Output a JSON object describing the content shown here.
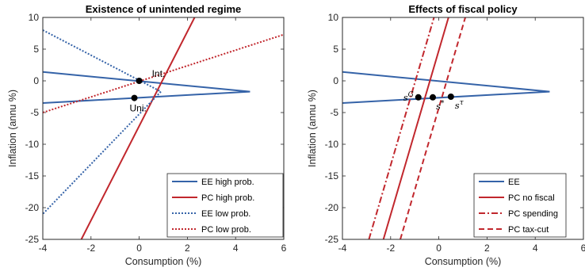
{
  "chart_data": [
    {
      "type": "line",
      "title": "Existence of unintended regime",
      "xlabel": "Consumption (%)",
      "ylabel": "Inflation (annu %)",
      "xlim": [
        -4,
        6
      ],
      "ylim": [
        -25,
        10
      ],
      "xticks": [
        "-4",
        "-2",
        "0",
        "2",
        "4",
        "6"
      ],
      "yticks": [
        "-25",
        "-20",
        "-15",
        "-10",
        "-5",
        "0",
        "5",
        "10"
      ],
      "legend_position": "bottom-right",
      "series": [
        {
          "name": "EE high prob.",
          "color": "#3563A8",
          "style": "solid",
          "points": [
            [
              -4,
              1.4
            ],
            [
              4.6,
              -1.7
            ],
            [
              -4,
              -3.5
            ]
          ]
        },
        {
          "name": "PC high prob.",
          "color": "#C1272D",
          "style": "solid",
          "points": [
            [
              -2.4,
              -25
            ],
            [
              2.3,
              10
            ]
          ]
        },
        {
          "name": "EE low prob.",
          "color": "#3563A8",
          "style": "dotted",
          "points": [
            [
              -4,
              8
            ],
            [
              0.9,
              -1.7
            ],
            [
              -4,
              -21
            ]
          ]
        },
        {
          "name": "PC low prob.",
          "color": "#C1272D",
          "style": "dotted",
          "points": [
            [
              -4,
              -5
            ],
            [
              6,
              7.3
            ]
          ]
        }
      ],
      "points": [
        {
          "x": 0,
          "y": 0,
          "label": "Int."
        },
        {
          "x": -0.2,
          "y": -2.7,
          "label": "Uni."
        }
      ]
    },
    {
      "type": "line",
      "title": "Effects of fiscal policy",
      "xlabel": "Consumption (%)",
      "ylabel": "Inflation (annu %)",
      "xlim": [
        -4,
        6
      ],
      "ylim": [
        -25,
        10
      ],
      "xticks": [
        "-4",
        "-2",
        "0",
        "2",
        "4",
        "6"
      ],
      "yticks": [
        "-25",
        "-20",
        "-15",
        "-10",
        "-5",
        "0",
        "5",
        "10"
      ],
      "legend_position": "bottom-right",
      "series": [
        {
          "name": "EE",
          "color": "#3563A8",
          "style": "solid",
          "points": [
            [
              -4,
              1.4
            ],
            [
              4.6,
              -1.7
            ],
            [
              -4,
              -3.5
            ]
          ]
        },
        {
          "name": "PC no fiscal",
          "color": "#C1272D",
          "style": "solid",
          "points": [
            [
              -2.3,
              -25
            ],
            [
              0.4,
              10
            ]
          ]
        },
        {
          "name": "PC spending",
          "color": "#C1272D",
          "style": "dashdot",
          "points": [
            [
              -2.9,
              -25
            ],
            [
              -0.2,
              10
            ]
          ]
        },
        {
          "name": "PC tax-cut",
          "color": "#C1272D",
          "style": "dashed",
          "points": [
            [
              -1.6,
              -25
            ],
            [
              1.1,
              10
            ]
          ]
        }
      ],
      "points": [
        {
          "x": -0.85,
          "y": -2.6,
          "label": "s",
          "sup": "G"
        },
        {
          "x": -0.25,
          "y": -2.6,
          "label": "s",
          "sup": "*"
        },
        {
          "x": 0.5,
          "y": -2.5,
          "label": "s",
          "sup": "τ"
        }
      ]
    }
  ]
}
